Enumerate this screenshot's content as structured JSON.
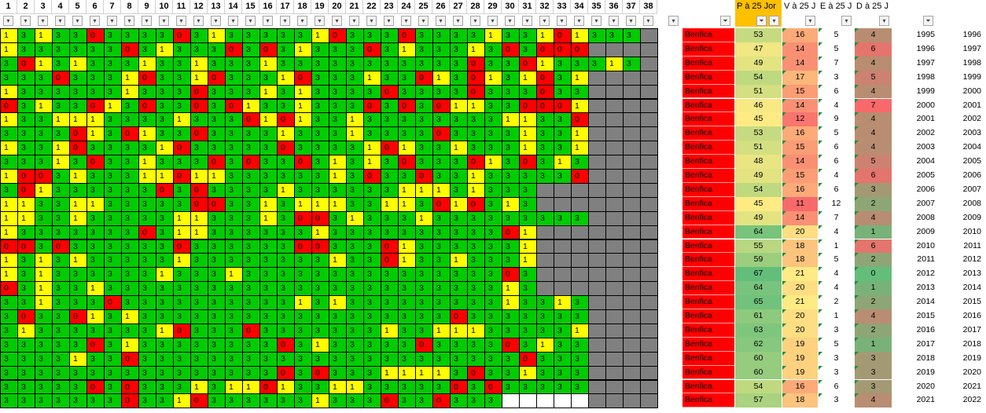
{
  "header": {
    "round_numbers": [
      "1",
      "2",
      "3",
      "4",
      "5",
      "6",
      "7",
      "8",
      "9",
      "10",
      "11",
      "12",
      "13",
      "14",
      "15",
      "16",
      "17",
      "18",
      "19",
      "20",
      "21",
      "22",
      "23",
      "24",
      "25",
      "26",
      "27",
      "28",
      "29",
      "30",
      "31",
      "32",
      "33",
      "34",
      "35",
      "36",
      "37",
      "38"
    ],
    "col_p": "P à 25 Jor",
    "col_v": "V à 25 J",
    "col_e": "E à 25 J",
    "col_d": "D à 25 J",
    "filter_glyph": "▾",
    "filter_active_glyph": "⏷"
  },
  "results": [
    "1313303333031333331033303333133101333",
    "1333333031333030313330313331303000",
    "3013133313313331333333333330330133313",
    "3330333103310333103331330130131031",
    "1333333133303331313333033330333033",
    "0313301303303013313330303011330001",
    "1331113333133301013313333333311330",
    "3333013013303333133313333033331331",
    "1331033331033333033331013313331331",
    "3331303313330303303131303330130313",
    "1003133311011333333130330331333330",
    "3013333330303333133333311131333",
    "1133113333300331311133113010313",
    "1133133333113331300313331333333333",
    "1333333303113333331333333333301",
    "0030333333033333300333013333331",
    "1313133333133333333133013313331",
    "1313333331333133333333333333303",
    "0313313333333333333333333333313",
    "3313330333333333313133333333313313",
    "3033013133333333333333333303333333",
    "3133333331033303333333133111333331",
    "3333303133333333031333330333303133",
    "3333133033333333333333333333330333",
    "3333333333333333030333111130331333",
    "3333303033313110133113333303033333",
    "33333330331033333313330330333"
  ],
  "rows": [
    {
      "team": "Benfica",
      "p": "53",
      "v": "16",
      "e": "5",
      "d": "4",
      "y1": "1995",
      "y2": "1996"
    },
    {
      "team": "Benfica",
      "p": "47",
      "v": "14",
      "e": "5",
      "d": "6",
      "y1": "1996",
      "y2": "1997"
    },
    {
      "team": "Benfica",
      "p": "49",
      "v": "14",
      "e": "7",
      "d": "4",
      "y1": "1997",
      "y2": "1998"
    },
    {
      "team": "Benfica",
      "p": "54",
      "v": "17",
      "e": "3",
      "d": "5",
      "y1": "1998",
      "y2": "1999"
    },
    {
      "team": "Benfica",
      "p": "51",
      "v": "15",
      "e": "6",
      "d": "4",
      "y1": "1999",
      "y2": "2000"
    },
    {
      "team": "Benfica",
      "p": "46",
      "v": "14",
      "e": "4",
      "d": "7",
      "y1": "2000",
      "y2": "2001"
    },
    {
      "team": "Benfica",
      "p": "45",
      "v": "12",
      "e": "9",
      "d": "4",
      "y1": "2001",
      "y2": "2002"
    },
    {
      "team": "Benfica",
      "p": "53",
      "v": "16",
      "e": "5",
      "d": "4",
      "y1": "2002",
      "y2": "2003"
    },
    {
      "team": "Benfica",
      "p": "51",
      "v": "15",
      "e": "6",
      "d": "4",
      "y1": "2003",
      "y2": "2004"
    },
    {
      "team": "Benfica",
      "p": "48",
      "v": "14",
      "e": "6",
      "d": "5",
      "y1": "2004",
      "y2": "2005"
    },
    {
      "team": "Benfica",
      "p": "49",
      "v": "15",
      "e": "4",
      "d": "6",
      "y1": "2005",
      "y2": "2006"
    },
    {
      "team": "Benfica",
      "p": "54",
      "v": "16",
      "e": "6",
      "d": "3",
      "y1": "2006",
      "y2": "2007"
    },
    {
      "team": "Benfica",
      "p": "45",
      "v": "11",
      "e": "12",
      "d": "2",
      "y1": "2007",
      "y2": "2008"
    },
    {
      "team": "Benfica",
      "p": "49",
      "v": "14",
      "e": "7",
      "d": "4",
      "y1": "2008",
      "y2": "2009"
    },
    {
      "team": "Benfica",
      "p": "64",
      "v": "20",
      "e": "4",
      "d": "1",
      "y1": "2009",
      "y2": "2010"
    },
    {
      "team": "Benfica",
      "p": "55",
      "v": "18",
      "e": "1",
      "d": "6",
      "y1": "2010",
      "y2": "2011"
    },
    {
      "team": "Benfica",
      "p": "59",
      "v": "18",
      "e": "5",
      "d": "2",
      "y1": "2011",
      "y2": "2012"
    },
    {
      "team": "Benfica",
      "p": "67",
      "v": "21",
      "e": "4",
      "d": "0",
      "y1": "2012",
      "y2": "2013"
    },
    {
      "team": "Benfica",
      "p": "64",
      "v": "20",
      "e": "4",
      "d": "1",
      "y1": "2013",
      "y2": "2014"
    },
    {
      "team": "Benfica",
      "p": "65",
      "v": "21",
      "e": "2",
      "d": "2",
      "y1": "2014",
      "y2": "2015"
    },
    {
      "team": "Benfica",
      "p": "61",
      "v": "20",
      "e": "1",
      "d": "4",
      "y1": "2015",
      "y2": "2016"
    },
    {
      "team": "Benfica",
      "p": "63",
      "v": "20",
      "e": "3",
      "d": "2",
      "y1": "2016",
      "y2": "2017"
    },
    {
      "team": "Benfica",
      "p": "62",
      "v": "19",
      "e": "5",
      "d": "1",
      "y1": "2017",
      "y2": "2018"
    },
    {
      "team": "Benfica",
      "p": "60",
      "v": "19",
      "e": "3",
      "d": "3",
      "y1": "2018",
      "y2": "2019"
    },
    {
      "team": "Benfica",
      "p": "60",
      "v": "19",
      "e": "3",
      "d": "3",
      "y1": "2019",
      "y2": "2020"
    },
    {
      "team": "Benfica",
      "p": "54",
      "v": "16",
      "e": "6",
      "d": "3",
      "y1": "2020",
      "y2": "2021"
    },
    {
      "team": "Benfica",
      "p": "57",
      "v": "18",
      "e": "3",
      "d": "4",
      "y1": "2021",
      "y2": "2022"
    }
  ],
  "colors": {
    "win": "#00cc00",
    "draw": "#ffff00",
    "loss": "#ff0000",
    "unplayed": "#808080",
    "header_highlight": "#ffc000",
    "team_fill": "#ff0000"
  },
  "scales": {
    "points_low": "#ffeb84",
    "points_high": "#63be7b",
    "wins_low": "#ffeb84",
    "wins_high": "#f8696b",
    "losses_low": "#63be7b",
    "losses_high": "#f8696b"
  }
}
